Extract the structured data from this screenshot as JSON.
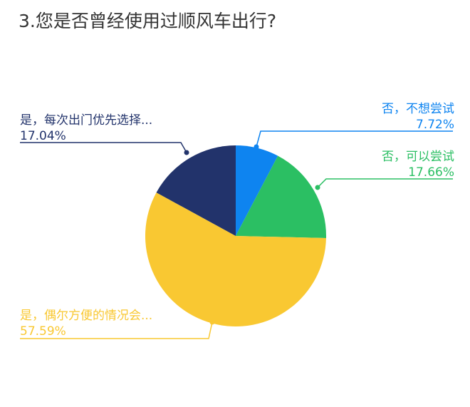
{
  "chart_data": {
    "type": "pie",
    "title": "3.您是否曾经使用过顺风车出行?",
    "slices": [
      {
        "label": "否，不想尝试",
        "value": 7.72,
        "display": "7.72%",
        "color": "#0e84f0"
      },
      {
        "label": "否，可以尝试",
        "value": 17.66,
        "display": "17.66%",
        "color": "#2bbf63"
      },
      {
        "label": "是，偶尔方便的情况会...",
        "value": 57.59,
        "display": "57.59%",
        "color": "#f9c832"
      },
      {
        "label": "是，每次出门优先选择...",
        "value": 17.04,
        "display": "17.04%",
        "color": "#22336b"
      }
    ],
    "start_angle_deg": 0,
    "direction": "clockwise",
    "legend": "none"
  }
}
